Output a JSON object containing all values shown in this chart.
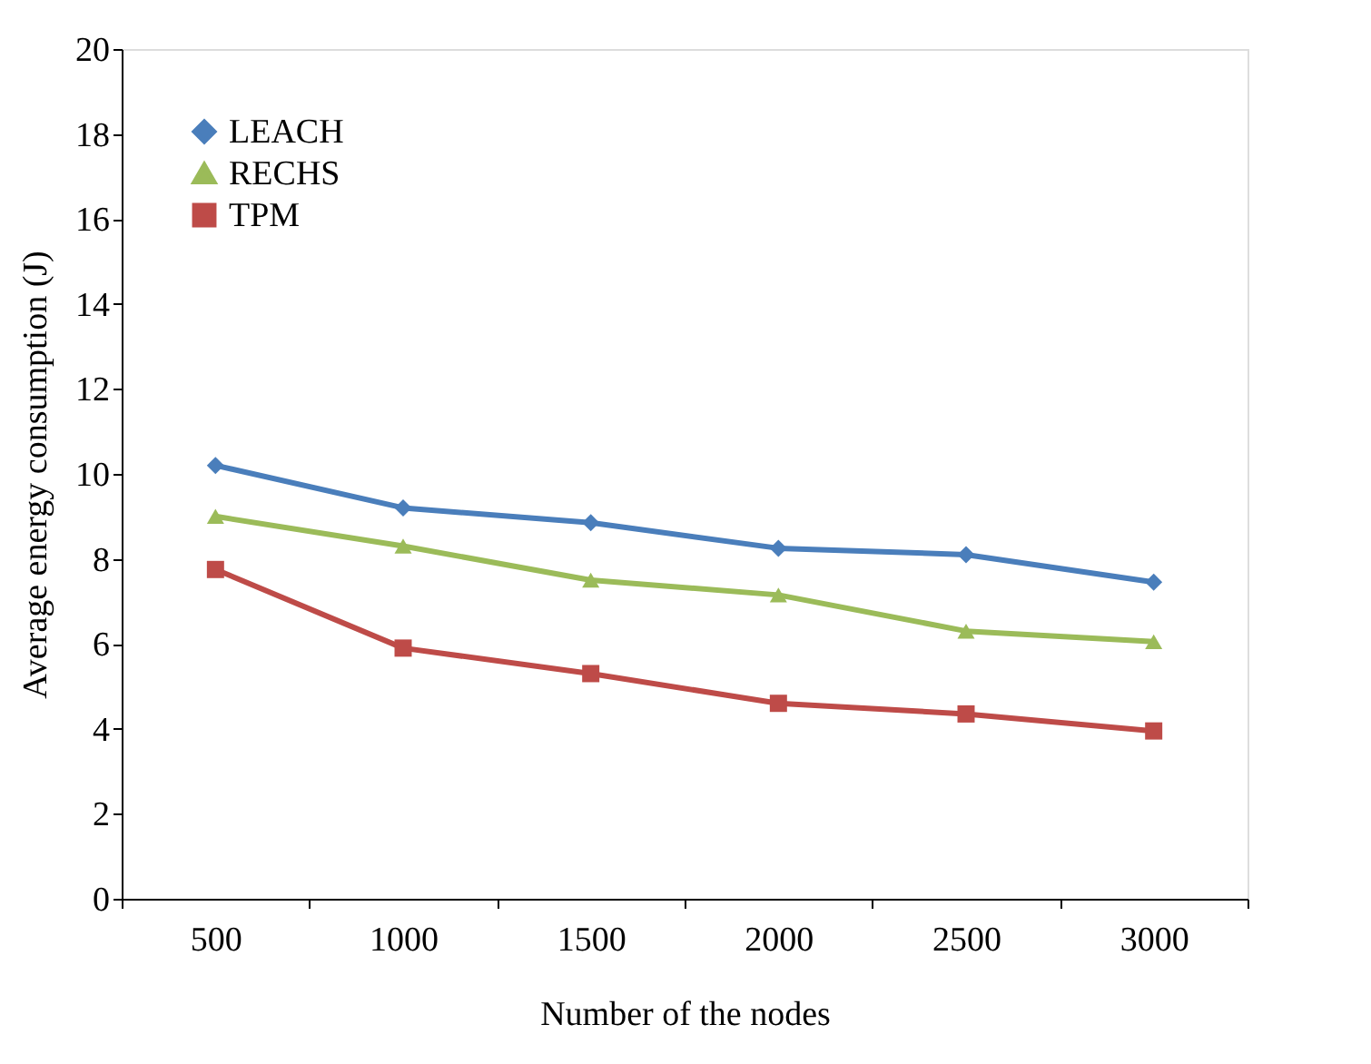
{
  "chart_data": {
    "type": "line",
    "xlabel": "Number of the nodes",
    "ylabel": "Average energy consumption (J)",
    "categories": [
      "500",
      "1000",
      "1500",
      "2000",
      "2500",
      "3000"
    ],
    "series": [
      {
        "name": "LEACH",
        "color": "#4a7ebb",
        "marker": "diamond",
        "values": [
          10.2,
          9.2,
          8.85,
          8.25,
          8.1,
          7.45
        ]
      },
      {
        "name": "RECHS",
        "color": "#9bbb59",
        "marker": "triangle",
        "values": [
          9.0,
          8.3,
          7.5,
          7.15,
          6.3,
          6.05
        ]
      },
      {
        "name": "TPM",
        "color": "#be4b48",
        "marker": "square",
        "values": [
          7.75,
          5.9,
          5.3,
          4.6,
          4.35,
          3.95
        ]
      }
    ],
    "ylim": [
      0,
      20
    ],
    "yticks": [
      0,
      2,
      4,
      6,
      8,
      10,
      12,
      14,
      16,
      18,
      20
    ],
    "grid": false,
    "legend": "top left",
    "line_style": "solid"
  }
}
